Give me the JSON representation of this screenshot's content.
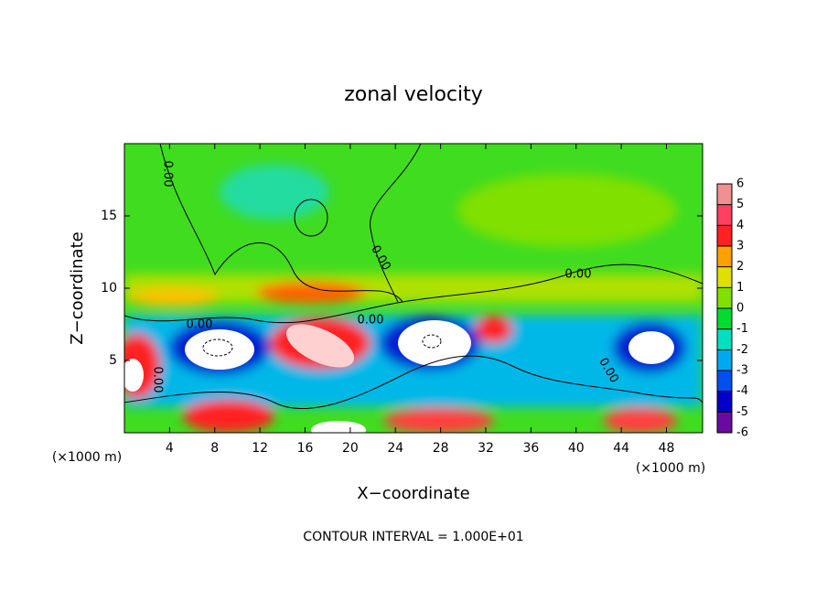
{
  "chart_data": {
    "type": "contour",
    "title": "zonal velocity",
    "x_label": "X−coordinate",
    "y_label": "Z−coordinate",
    "x_unit_left": "(×1000 m)",
    "x_unit_right": "(×1000 m)",
    "footer": "CONTOUR INTERVAL = 1.000E+01",
    "xlim": [
      0,
      51.2
    ],
    "ylim": [
      0,
      20
    ],
    "xticks": [
      4,
      8,
      12,
      16,
      20,
      24,
      28,
      32,
      36,
      40,
      44,
      48
    ],
    "yticks": [
      5,
      10,
      15
    ],
    "contour_labels": [
      "0.00",
      "0.00",
      "0.00",
      "0.00",
      "0.00",
      "0.00",
      "0.00"
    ],
    "colorbar": {
      "levels": [
        -6,
        -5,
        -4,
        -3,
        -2,
        -1,
        0,
        1,
        2,
        3,
        4,
        5,
        6
      ],
      "colors": [
        "#6a0aa0",
        "#0000c8",
        "#0050f0",
        "#00a8f0",
        "#00e0c0",
        "#00dc30",
        "#80e000",
        "#e0e000",
        "#ffa000",
        "#ff2020",
        "#ff4060",
        "#f09090"
      ]
    }
  }
}
